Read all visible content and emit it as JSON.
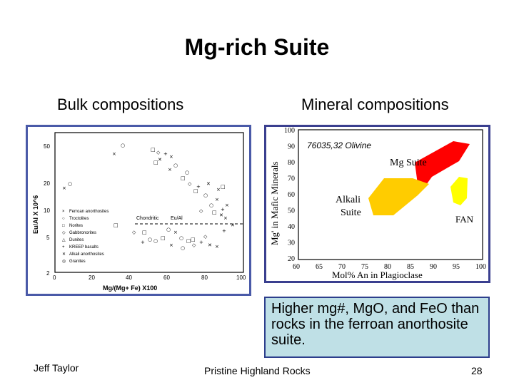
{
  "slide": {
    "title": "Mg-rich Suite",
    "left_heading": "Bulk compositions",
    "right_heading": "Mineral compositions",
    "caption": "Higher mg#, MgO, and FeO than rocks in the ferroan anorthosite suite.",
    "footer_left": "Jeff Taylor",
    "footer_center": "Pristine Highland Rocks",
    "page_number": "28"
  },
  "bulk_plot": {
    "ylabel": "Eu/Al X 10^6",
    "xlabel": "Mg/(Mg+ Fe) X100",
    "x_ticks": [
      "0",
      "20",
      "40",
      "60",
      "80",
      "100"
    ],
    "y_ticks": [
      "50",
      "20",
      "10",
      "5",
      "2"
    ],
    "chondritic_label": "Chondritic",
    "eu_al_label": "Eu/Al",
    "legend": [
      {
        "symbol": "×",
        "label": "Ferroan anorthosites"
      },
      {
        "symbol": "○",
        "label": "Troctolites"
      },
      {
        "symbol": "□",
        "label": "Norites"
      },
      {
        "symbol": "◇",
        "label": "Gabbronorites"
      },
      {
        "symbol": "△",
        "label": "Dunites"
      },
      {
        "symbol": "+",
        "label": "KREEP basalts"
      },
      {
        "symbol": "✕",
        "label": "Alkali anorthosites"
      },
      {
        "symbol": "◎",
        "label": "Granites"
      }
    ]
  },
  "mineral_plot": {
    "ylabel": "Mg' in Mafic Minerals",
    "xlabel": "Mol% An in Plagioclase",
    "x_ticks": [
      "60",
      "65",
      "70",
      "75",
      "80",
      "85",
      "90",
      "95",
      "100"
    ],
    "y_ticks": [
      "100",
      "90",
      "80",
      "70",
      "60",
      "50",
      "40",
      "30",
      "20"
    ],
    "annotation": "76035,32 Olivine",
    "fields": [
      {
        "label": "Mg Suite",
        "color": "#ff0000"
      },
      {
        "label": "Alkali Suite",
        "label_line1": "Alkali",
        "label_line2": "Suite",
        "color": "#ffcc00"
      },
      {
        "label": "FAN",
        "color": "#ffff00"
      }
    ]
  }
}
